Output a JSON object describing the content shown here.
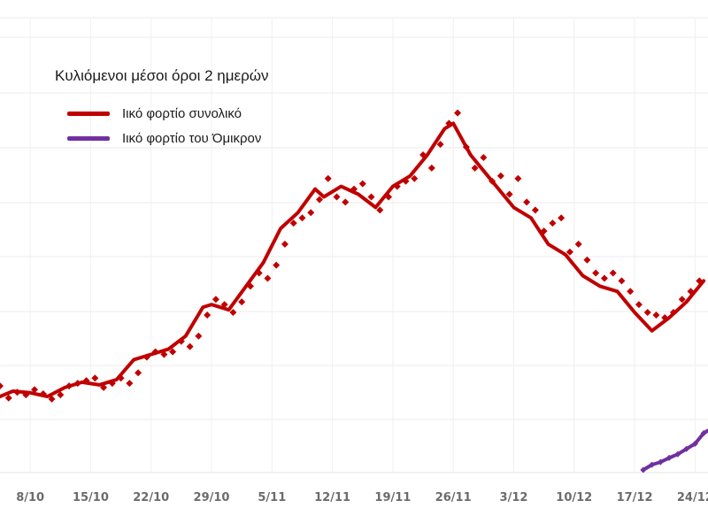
{
  "chart_data": {
    "type": "line",
    "title": "Κυλιόμενοι μέσοι όροι 2 ημερών",
    "legend_position": "top-left",
    "grid": true,
    "x_tick_labels": [
      "8/10",
      "15/10",
      "22/10",
      "29/10",
      "5/11",
      "12/11",
      "19/11",
      "26/11",
      "3/12",
      "10/12",
      "17/12",
      "24/12"
    ],
    "x_tick_days": [
      7,
      14,
      21,
      28,
      35,
      42,
      49,
      56,
      63,
      70,
      77,
      84
    ],
    "xlim": [
      3.5,
      85.5
    ],
    "ylim": [
      -0.7,
      8.3
    ],
    "series": [
      {
        "name": "Ιικό φορτίο συνολικό",
        "color": "#c00000",
        "x": [
          3.5,
          5,
          7,
          9,
          11,
          13,
          15,
          17,
          19,
          21,
          23,
          25,
          27,
          28,
          30,
          32,
          34,
          36,
          38,
          40,
          41,
          43,
          45,
          47,
          49,
          51,
          53,
          55,
          56,
          58,
          60,
          62,
          63,
          65,
          67,
          69,
          71,
          73,
          75,
          77,
          79,
          81,
          83,
          85
        ],
        "y": [
          0.75,
          0.85,
          0.82,
          0.75,
          0.92,
          1.02,
          0.97,
          1.07,
          1.45,
          1.55,
          1.65,
          1.9,
          2.45,
          2.5,
          2.4,
          2.85,
          3.3,
          3.95,
          4.25,
          4.7,
          4.55,
          4.75,
          4.6,
          4.35,
          4.75,
          4.95,
          5.35,
          5.85,
          5.95,
          5.35,
          4.95,
          4.55,
          4.35,
          4.15,
          3.65,
          3.45,
          3.05,
          2.85,
          2.75,
          2.35,
          2.0,
          2.25,
          2.55,
          2.95
        ]
      },
      {
        "name": "Ιικό φορτίο του Όμικρον",
        "color": "#7030a0",
        "x": [
          78,
          79,
          80,
          81,
          82,
          83,
          84,
          85,
          85.5
        ],
        "y": [
          -0.65,
          -0.55,
          -0.5,
          -0.42,
          -0.35,
          -0.25,
          -0.15,
          0.05,
          0.1
        ]
      }
    ],
    "scatter_points": {
      "name": "Ιικό φορτίο συνολικό",
      "color": "#c00000",
      "x": [
        3.5,
        4.5,
        5.5,
        6.5,
        7.5,
        8.5,
        9.5,
        10.5,
        11.5,
        12.5,
        13.5,
        14.5,
        15.5,
        16.5,
        17.5,
        18.5,
        19.5,
        20.5,
        21.5,
        22.5,
        23.5,
        24.5,
        25.5,
        26.5,
        27.5,
        28.5,
        29.5,
        30.5,
        31.5,
        32.5,
        33.5,
        34.5,
        35.5,
        36.5,
        37.5,
        38.5,
        39.5,
        40.5,
        41.5,
        42.5,
        43.5,
        44.5,
        45.5,
        46.5,
        47.5,
        48.5,
        49.5,
        50.5,
        51.5,
        52.5,
        53.5,
        54.5,
        55.5,
        56.5,
        57.5,
        58.5,
        59.5,
        60.5,
        61.5,
        62.5,
        63.5,
        64.5,
        65.5,
        66.5,
        67.5,
        68.5,
        69.5,
        70.5,
        71.5,
        72.5,
        73.5,
        74.5,
        75.5,
        76.5,
        77.5,
        78.5,
        79.5,
        80.5,
        81.5,
        82.5,
        83.5,
        84.5
      ],
      "y": [
        0.95,
        0.72,
        0.83,
        0.78,
        0.88,
        0.8,
        0.7,
        0.78,
        0.95,
        1.0,
        1.05,
        1.1,
        0.92,
        1.0,
        1.1,
        1.0,
        1.2,
        1.5,
        1.6,
        1.55,
        1.6,
        1.8,
        1.7,
        1.9,
        2.3,
        2.6,
        2.5,
        2.35,
        2.55,
        2.85,
        3.1,
        3.0,
        3.25,
        3.65,
        4.05,
        4.15,
        4.25,
        4.5,
        4.9,
        4.55,
        4.45,
        4.7,
        4.8,
        4.55,
        4.3,
        4.55,
        4.75,
        4.85,
        4.9,
        5.35,
        5.1,
        5.55,
        5.95,
        6.15,
        5.5,
        5.1,
        5.3,
        4.85,
        4.95,
        4.6,
        4.9,
        4.45,
        4.3,
        3.9,
        4.05,
        4.15,
        3.5,
        3.65,
        3.35,
        3.1,
        3.0,
        3.1,
        2.95,
        2.75,
        2.5,
        2.35,
        2.3,
        2.25,
        2.35,
        2.6,
        2.75,
        2.95
      ]
    }
  }
}
